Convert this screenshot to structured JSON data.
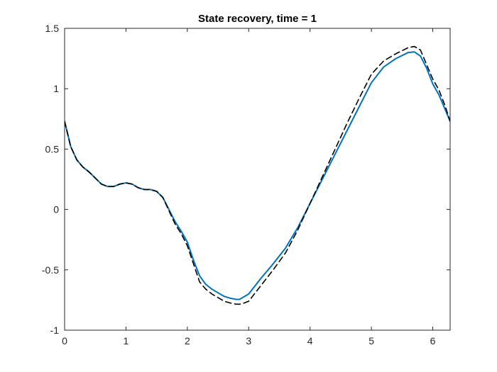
{
  "chart_data": {
    "type": "line",
    "title": "State recovery, time = 1",
    "xlabel": "",
    "ylabel": "",
    "xlim": [
      0,
      6.2832
    ],
    "ylim": [
      -1,
      1.5
    ],
    "xticks": [
      0,
      1,
      2,
      3,
      4,
      5,
      6
    ],
    "xtick_labels": [
      "0",
      "1",
      "2",
      "3",
      "4",
      "5",
      "6"
    ],
    "yticks": [
      -1,
      -0.5,
      0,
      0.5,
      1,
      1.5
    ],
    "ytick_labels": [
      "-1",
      "-0.5",
      "0",
      "0.5",
      "1",
      "1.5"
    ],
    "grid": false,
    "legend": "none",
    "series": [
      {
        "style": "solid",
        "color": "#0072BD",
        "x": [
          0,
          0.1,
          0.2,
          0.3,
          0.4,
          0.5,
          0.6,
          0.7,
          0.8,
          0.9,
          1.0,
          1.1,
          1.2,
          1.3,
          1.4,
          1.5,
          1.6,
          1.7,
          1.8,
          1.9,
          2.0,
          2.1,
          2.2,
          2.3,
          2.4,
          2.5,
          2.6,
          2.7,
          2.8,
          2.85,
          2.9,
          3.0,
          3.2,
          3.4,
          3.6,
          3.8,
          4.0,
          4.2,
          4.4,
          4.6,
          4.8,
          5.0,
          5.2,
          5.4,
          5.6,
          5.7,
          5.8,
          5.9,
          6.0,
          6.1,
          6.2,
          6.2832
        ],
        "y": [
          0.73,
          0.52,
          0.41,
          0.35,
          0.31,
          0.26,
          0.21,
          0.19,
          0.19,
          0.21,
          0.22,
          0.21,
          0.18,
          0.165,
          0.165,
          0.15,
          0.1,
          0.0,
          -0.1,
          -0.18,
          -0.27,
          -0.42,
          -0.55,
          -0.62,
          -0.66,
          -0.69,
          -0.72,
          -0.735,
          -0.745,
          -0.745,
          -0.73,
          -0.7,
          -0.57,
          -0.45,
          -0.32,
          -0.15,
          0.05,
          0.25,
          0.45,
          0.65,
          0.85,
          1.05,
          1.18,
          1.25,
          1.3,
          1.305,
          1.27,
          1.17,
          1.04,
          0.95,
          0.83,
          0.73
        ]
      },
      {
        "style": "dashed",
        "color": "#000000",
        "x": [
          0,
          0.1,
          0.2,
          0.3,
          0.4,
          0.5,
          0.6,
          0.7,
          0.8,
          0.9,
          1.0,
          1.1,
          1.2,
          1.3,
          1.4,
          1.5,
          1.6,
          1.7,
          1.8,
          1.9,
          2.0,
          2.1,
          2.2,
          2.3,
          2.4,
          2.5,
          2.6,
          2.7,
          2.8,
          2.85,
          2.9,
          3.0,
          3.2,
          3.4,
          3.6,
          3.8,
          4.0,
          4.2,
          4.4,
          4.6,
          4.8,
          5.0,
          5.2,
          5.4,
          5.6,
          5.7,
          5.8,
          5.9,
          6.0,
          6.1,
          6.2,
          6.2832
        ],
        "y": [
          0.73,
          0.52,
          0.41,
          0.35,
          0.31,
          0.26,
          0.21,
          0.19,
          0.19,
          0.21,
          0.22,
          0.21,
          0.18,
          0.165,
          0.165,
          0.15,
          0.1,
          -0.01,
          -0.12,
          -0.2,
          -0.3,
          -0.45,
          -0.6,
          -0.66,
          -0.7,
          -0.73,
          -0.76,
          -0.775,
          -0.785,
          -0.785,
          -0.78,
          -0.76,
          -0.63,
          -0.5,
          -0.36,
          -0.17,
          0.05,
          0.27,
          0.49,
          0.71,
          0.92,
          1.12,
          1.23,
          1.29,
          1.34,
          1.35,
          1.32,
          1.2,
          1.08,
          0.99,
          0.86,
          0.73
        ]
      }
    ]
  }
}
